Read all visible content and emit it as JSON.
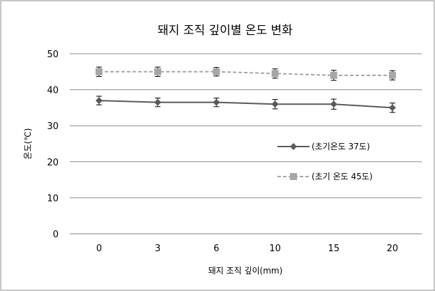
{
  "chart_data": {
    "type": "line",
    "title": "돼지 조직 깊이별 온도 변화",
    "xlabel": "돼지 조직 깊이(mm)",
    "ylabel": "온도(℃)",
    "categories": [
      "0",
      "3",
      "6",
      "10",
      "15",
      "20"
    ],
    "ylim": [
      0,
      50
    ],
    "yticks": [
      "0",
      "10",
      "20",
      "30",
      "40",
      "50"
    ],
    "grid": true,
    "legend_position": "right",
    "series": [
      {
        "name": "(초기온도 37도)",
        "values": [
          37,
          36.5,
          36.5,
          36,
          36,
          35
        ],
        "error": [
          1.2,
          1.2,
          1.2,
          1.3,
          1.4,
          1.3
        ],
        "color": "#595959",
        "dash": "solid",
        "marker": "diamond"
      },
      {
        "name": "(초기 온도 45도)",
        "values": [
          45,
          45,
          45,
          44.5,
          44,
          44
        ],
        "error": [
          1.3,
          1.3,
          1.2,
          1.3,
          1.4,
          1.3
        ],
        "color": "#a6a6a6",
        "dash": "dashed",
        "marker": "square"
      }
    ]
  }
}
